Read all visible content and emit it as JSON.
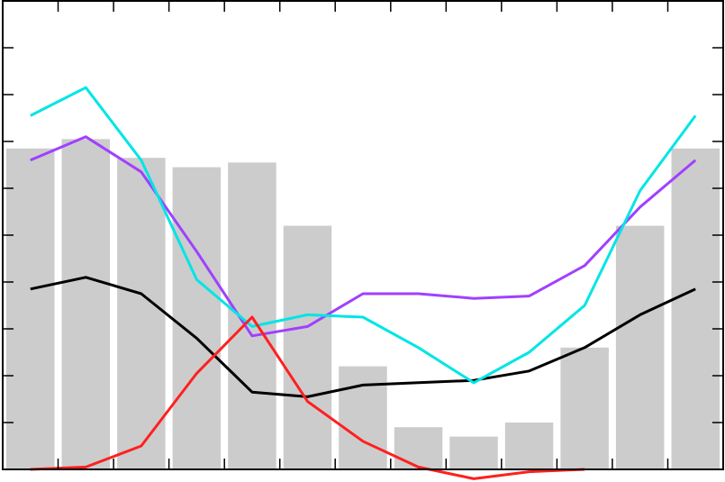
{
  "chart_data": {
    "type": "bar+line",
    "x": [
      1,
      2,
      3,
      4,
      5,
      6,
      7,
      8,
      9,
      10,
      11,
      12,
      13
    ],
    "ylim": [
      0,
      10
    ],
    "grid": false,
    "bars": {
      "color": "#cccccc",
      "values": [
        6.85,
        7.05,
        6.65,
        6.45,
        6.55,
        5.2,
        2.2,
        0.9,
        0.7,
        1.0,
        2.6,
        5.2,
        6.85
      ]
    },
    "series": [
      {
        "color": "#000000",
        "values": [
          3.85,
          4.1,
          3.75,
          2.8,
          1.65,
          1.55,
          1.8,
          1.85,
          1.9,
          2.1,
          2.6,
          3.3,
          3.85
        ]
      },
      {
        "color": "#a040ff",
        "values": [
          6.6,
          7.1,
          6.35,
          4.65,
          2.85,
          3.05,
          3.75,
          3.75,
          3.65,
          3.7,
          4.35,
          5.6,
          6.6
        ]
      },
      {
        "color": "#00e5e5",
        "values": [
          7.55,
          8.15,
          6.6,
          4.05,
          3.05,
          3.3,
          3.25,
          2.6,
          1.85,
          2.5,
          3.5,
          5.95,
          7.55
        ]
      },
      {
        "color": "#ff2020",
        "values": [
          0,
          0.05,
          0.5,
          2.05,
          3.25,
          1.45,
          0.6,
          0.05,
          -0.2,
          -0.05,
          0.0,
          null,
          null
        ]
      }
    ]
  }
}
